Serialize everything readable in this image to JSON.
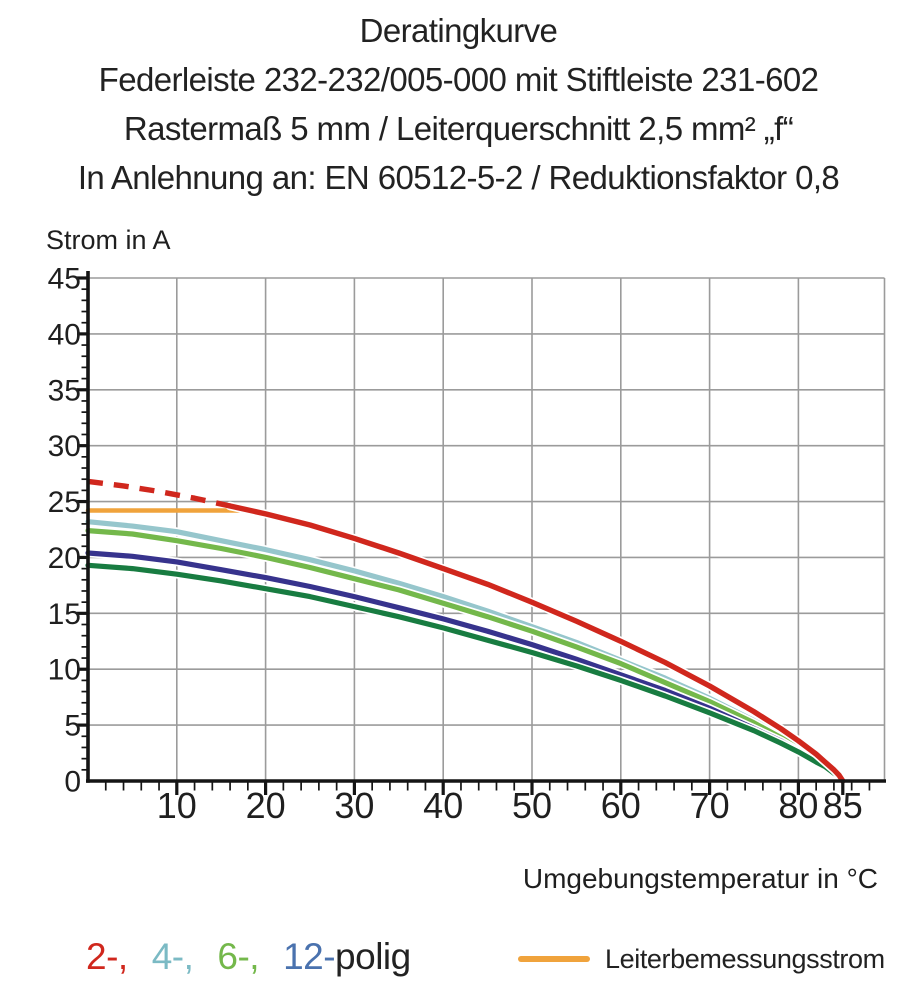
{
  "header": {
    "lines": [
      "Deratingkurve",
      "Federleiste 232-232/005-000 mit Stiftleiste 231-602",
      "Rastermaß 5 mm / Leiterquerschnitt 2,5 mm² „f“",
      "In Anlehnung an: EN 60512-5-2 / Reduktionsfaktor 0,8"
    ]
  },
  "chart_data": {
    "type": "line",
    "title": "Deratingkurve",
    "xlabel": "Umgebungstemperatur in °C",
    "ylabel": "Strom in A",
    "xlim": [
      0,
      85
    ],
    "ylim": [
      0,
      45
    ],
    "x_ticks_major": [
      10,
      20,
      30,
      40,
      50,
      60,
      70,
      80,
      85
    ],
    "x_minor_step": 2,
    "y_ticks_major": [
      45,
      40,
      35,
      30,
      25,
      20,
      15,
      10,
      5,
      0
    ],
    "y_minor_step": 1,
    "grid": {
      "x_step": 10,
      "y_step": 5,
      "color": "#9b9b9b"
    },
    "axis_color": "#141414",
    "text_color": "#1f1f1f",
    "legend_position": "bottom",
    "series": [
      {
        "slug": "4-polig",
        "legend_label": "4-,",
        "color": "#96c6cc",
        "width": 5.2,
        "dashed": false,
        "casing": true,
        "points": [
          [
            0,
            23.2
          ],
          [
            5,
            22.8
          ],
          [
            10,
            22.3
          ],
          [
            15,
            21.5
          ],
          [
            20,
            20.7
          ],
          [
            25,
            19.8
          ],
          [
            30,
            18.8
          ],
          [
            35,
            17.7
          ],
          [
            40,
            16.5
          ],
          [
            45,
            15.2
          ],
          [
            50,
            13.8
          ],
          [
            55,
            12.4
          ],
          [
            60,
            10.8
          ],
          [
            65,
            9.2
          ],
          [
            70,
            7.4
          ],
          [
            75,
            5.4
          ],
          [
            78,
            4.1
          ],
          [
            80,
            3.1
          ],
          [
            82,
            2.1
          ],
          [
            83,
            1.5
          ],
          [
            84,
            0.9
          ],
          [
            84.6,
            0.5
          ],
          [
            85,
            0
          ]
        ]
      },
      {
        "slug": "6-polig",
        "legend_label": "6-,",
        "color": "#74b84b",
        "width": 5.2,
        "dashed": false,
        "casing": true,
        "points": [
          [
            0,
            22.4
          ],
          [
            5,
            22.1
          ],
          [
            10,
            21.5
          ],
          [
            15,
            20.8
          ],
          [
            20,
            20.0
          ],
          [
            25,
            19.1
          ],
          [
            30,
            18.1
          ],
          [
            35,
            17.1
          ],
          [
            40,
            15.9
          ],
          [
            45,
            14.7
          ],
          [
            50,
            13.4
          ],
          [
            55,
            12.0
          ],
          [
            60,
            10.5
          ],
          [
            65,
            8.8
          ],
          [
            70,
            7.1
          ],
          [
            75,
            5.2
          ],
          [
            78,
            3.9
          ],
          [
            80,
            3.0
          ],
          [
            82,
            2.0
          ],
          [
            83,
            1.5
          ],
          [
            84,
            0.8
          ],
          [
            84.6,
            0.4
          ],
          [
            85,
            0
          ]
        ]
      },
      {
        "slug": "12-polig",
        "legend_label": "12-",
        "color": "#37338d",
        "width": 5.2,
        "dashed": false,
        "casing": true,
        "points": [
          [
            0,
            20.4
          ],
          [
            5,
            20.1
          ],
          [
            10,
            19.6
          ],
          [
            15,
            18.9
          ],
          [
            20,
            18.2
          ],
          [
            25,
            17.4
          ],
          [
            30,
            16.5
          ],
          [
            35,
            15.5
          ],
          [
            40,
            14.5
          ],
          [
            45,
            13.4
          ],
          [
            50,
            12.2
          ],
          [
            55,
            10.9
          ],
          [
            60,
            9.5
          ],
          [
            65,
            8.1
          ],
          [
            70,
            6.5
          ],
          [
            75,
            4.7
          ],
          [
            78,
            3.6
          ],
          [
            80,
            2.7
          ],
          [
            82,
            1.8
          ],
          [
            83,
            1.3
          ],
          [
            84,
            0.8
          ],
          [
            84.6,
            0.4
          ],
          [
            85,
            0
          ]
        ]
      },
      {
        "slug": "unlabeled-dark-green",
        "legend_label": "",
        "color": "#187c41",
        "width": 5.2,
        "dashed": false,
        "casing": true,
        "points": [
          [
            0,
            19.3
          ],
          [
            5,
            19.0
          ],
          [
            10,
            18.5
          ],
          [
            15,
            17.9
          ],
          [
            20,
            17.2
          ],
          [
            25,
            16.5
          ],
          [
            30,
            15.6
          ],
          [
            35,
            14.7
          ],
          [
            40,
            13.7
          ],
          [
            45,
            12.6
          ],
          [
            50,
            11.5
          ],
          [
            55,
            10.3
          ],
          [
            60,
            9.0
          ],
          [
            65,
            7.6
          ],
          [
            70,
            6.1
          ],
          [
            75,
            4.5
          ],
          [
            78,
            3.4
          ],
          [
            80,
            2.6
          ],
          [
            82,
            1.7
          ],
          [
            83,
            1.3
          ],
          [
            84,
            0.7
          ],
          [
            84.6,
            0.4
          ],
          [
            85,
            0
          ]
        ]
      },
      {
        "slug": "leiterbemessungsstrom",
        "legend_label": "Leiterbemessungsstrom",
        "color": "#f0a33c",
        "width": 4.6,
        "dashed": false,
        "casing": false,
        "points": [
          [
            0,
            24.2
          ],
          [
            17,
            24.2
          ]
        ]
      },
      {
        "slug": "2-polig",
        "legend_label": "2-,",
        "color": "#d0271d",
        "width": 5.4,
        "dashed": false,
        "casing": true,
        "points": [
          [
            16,
            24.6
          ],
          [
            20,
            23.9
          ],
          [
            25,
            22.9
          ],
          [
            30,
            21.7
          ],
          [
            35,
            20.4
          ],
          [
            40,
            19.0
          ],
          [
            45,
            17.6
          ],
          [
            50,
            16.0
          ],
          [
            55,
            14.3
          ],
          [
            60,
            12.5
          ],
          [
            65,
            10.6
          ],
          [
            70,
            8.5
          ],
          [
            75,
            6.2
          ],
          [
            78,
            4.7
          ],
          [
            80,
            3.6
          ],
          [
            82,
            2.4
          ],
          [
            83,
            1.7
          ],
          [
            84,
            1.0
          ],
          [
            84.6,
            0.5
          ],
          [
            85,
            0
          ]
        ]
      },
      {
        "slug": "2-polig-dashed",
        "legend_label": "",
        "color": "#d0271d",
        "width": 5.4,
        "dashed": true,
        "casing": false,
        "points": [
          [
            0,
            26.8
          ],
          [
            4,
            26.4
          ],
          [
            8,
            25.9
          ],
          [
            12,
            25.3
          ],
          [
            16,
            24.6
          ]
        ]
      }
    ]
  },
  "legend": {
    "pole_items": [
      {
        "label": "2-,",
        "color": "#d0271d"
      },
      {
        "label": "4-,",
        "color": "#7bbac4"
      },
      {
        "label": "6-,",
        "color": "#74b84b"
      },
      {
        "label": "12-",
        "color": "#4a72ae"
      }
    ],
    "suffix": "polig",
    "rated": {
      "label": "Leiterbemessungsstrom",
      "color": "#f0a33c"
    }
  }
}
